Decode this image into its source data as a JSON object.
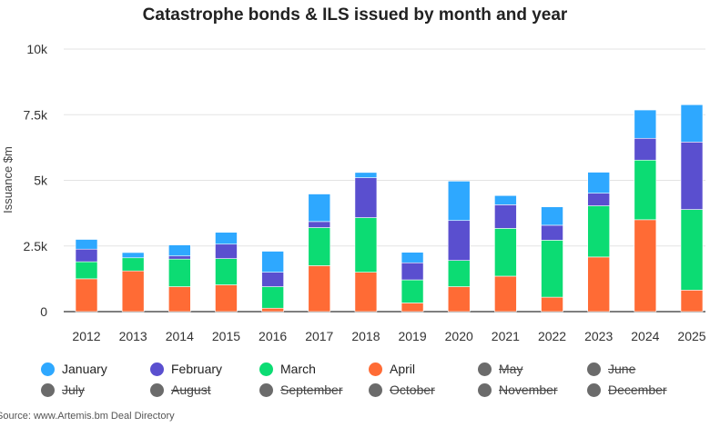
{
  "chart_data": {
    "type": "bar",
    "stacked": true,
    "title": "Catastrophe bonds & ILS issued by month and year",
    "ylabel": "Issuance $m",
    "xlabel": "",
    "ylim": [
      0,
      10000
    ],
    "yticks": [
      0,
      2500,
      5000,
      7500,
      10000
    ],
    "ytick_labels": [
      "0",
      "2.5k",
      "5k",
      "7.5k",
      "10k"
    ],
    "grid": true,
    "legend_position": "bottom",
    "categories": [
      "2012",
      "2013",
      "2014",
      "2015",
      "2016",
      "2017",
      "2018",
      "2019",
      "2020",
      "2021",
      "2022",
      "2023",
      "2024",
      "2025"
    ],
    "series": [
      {
        "name": "April",
        "color": "#ff6b35",
        "values": [
          1250,
          1550,
          950,
          1020,
          130,
          1750,
          1500,
          330,
          950,
          1350,
          550,
          2080,
          3500,
          820
        ]
      },
      {
        "name": "March",
        "color": "#0cdc73",
        "values": [
          650,
          500,
          1050,
          1000,
          820,
          1450,
          2080,
          880,
          1000,
          1820,
          2170,
          1950,
          2270,
          3070
        ]
      },
      {
        "name": "February",
        "color": "#5a4fcf",
        "values": [
          480,
          0,
          120,
          550,
          550,
          230,
          1520,
          650,
          1520,
          900,
          570,
          480,
          830,
          2570
        ]
      },
      {
        "name": "January",
        "color": "#2ea8ff",
        "values": [
          370,
          200,
          420,
          450,
          800,
          1050,
          200,
          400,
          1500,
          350,
          700,
          800,
          1080,
          1420
        ]
      }
    ],
    "legend": [
      {
        "name": "January",
        "color": "#2ea8ff",
        "active": true
      },
      {
        "name": "February",
        "color": "#5a4fcf",
        "active": true
      },
      {
        "name": "March",
        "color": "#0cdc73",
        "active": true
      },
      {
        "name": "April",
        "color": "#ff6b35",
        "active": true
      },
      {
        "name": "May",
        "color": "#6b6b6b",
        "active": false
      },
      {
        "name": "June",
        "color": "#6b6b6b",
        "active": false
      },
      {
        "name": "July",
        "color": "#6b6b6b",
        "active": false
      },
      {
        "name": "August",
        "color": "#6b6b6b",
        "active": false
      },
      {
        "name": "September",
        "color": "#6b6b6b",
        "active": false
      },
      {
        "name": "October",
        "color": "#6b6b6b",
        "active": false
      },
      {
        "name": "November",
        "color": "#6b6b6b",
        "active": false
      },
      {
        "name": "December",
        "color": "#6b6b6b",
        "active": false
      }
    ]
  },
  "source": "Source: www.Artemis.bm Deal Directory"
}
